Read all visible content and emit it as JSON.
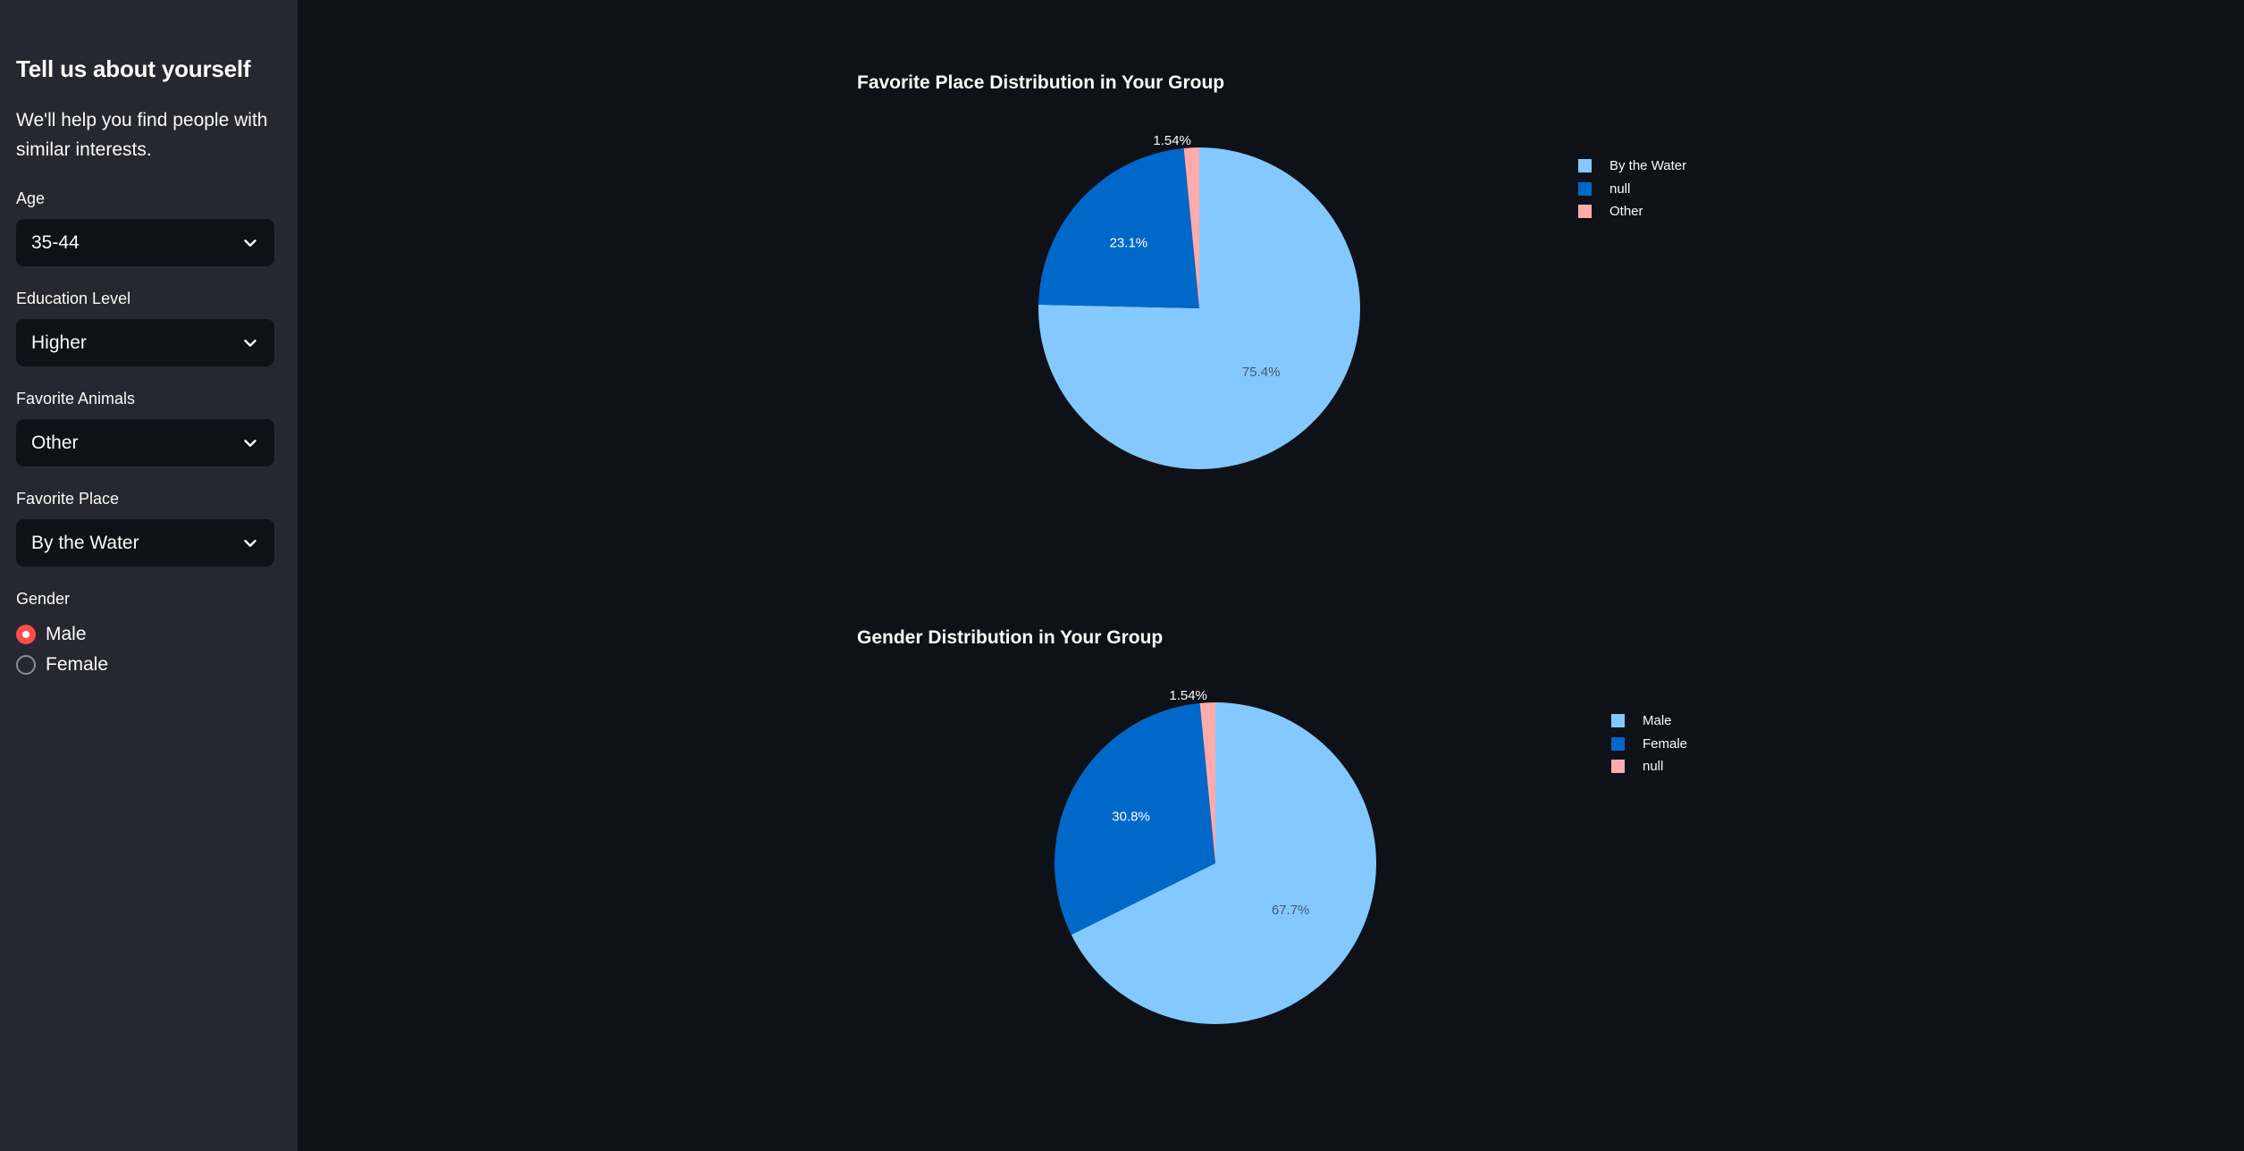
{
  "sidebar": {
    "title": "Tell us about yourself",
    "description": "We'll help you find people with similar interests.",
    "fields": [
      {
        "label": "Age",
        "value": "35-44"
      },
      {
        "label": "Education Level",
        "value": "Higher"
      },
      {
        "label": "Favorite Animals",
        "value": "Other"
      },
      {
        "label": "Favorite Place",
        "value": "By the Water"
      }
    ],
    "gender": {
      "label": "Gender",
      "options": [
        {
          "label": "Male",
          "selected": true
        },
        {
          "label": "Female",
          "selected": false
        }
      ]
    }
  },
  "colors": {
    "background": "#0e1117",
    "sidebar": "#262730",
    "accent": "#ff4b4b",
    "slice_light_blue": "#83c9ff",
    "slice_dark_blue": "#0068c9",
    "slice_pink": "#ffabab"
  },
  "chart_data": [
    {
      "type": "pie",
      "title": "Favorite Place Distribution in Your Group",
      "labels": [
        "By the Water",
        "null",
        "Other"
      ],
      "values": [
        75.4,
        23.1,
        1.54
      ],
      "value_labels": [
        "75.4%",
        "23.1%",
        "1.54%"
      ],
      "colors": [
        "#83c9ff",
        "#0068c9",
        "#ffabab"
      ],
      "legend_position": "top-right"
    },
    {
      "type": "pie",
      "title": "Gender Distribution in Your Group",
      "labels": [
        "Male",
        "Female",
        "null"
      ],
      "values": [
        67.7,
        30.8,
        1.54
      ],
      "value_labels": [
        "67.7%",
        "30.8%",
        "1.54%"
      ],
      "colors": [
        "#83c9ff",
        "#0068c9",
        "#ffabab"
      ],
      "legend_position": "top-right"
    }
  ]
}
